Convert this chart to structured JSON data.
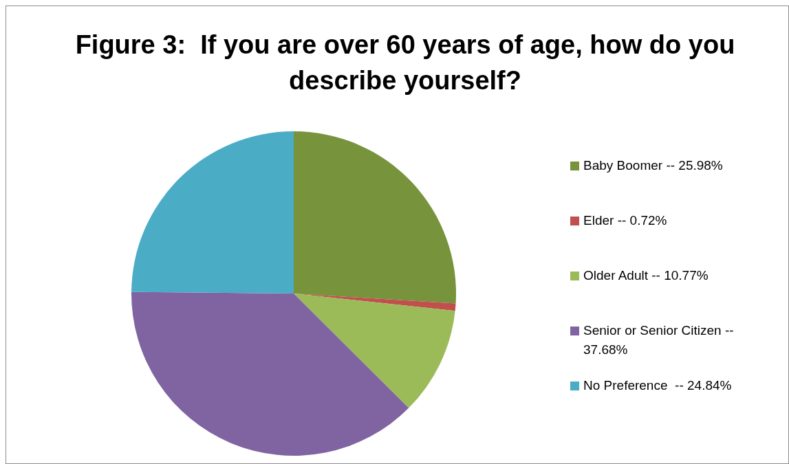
{
  "chart_data": {
    "type": "pie",
    "title": "Figure 3:  If you are over 60 years of age, how do you describe yourself?",
    "categories": [
      "Baby Boomer -- 25.98%",
      "Elder -- 0.72%",
      "Older Adult -- 10.77%",
      "Senior or Senior Citizen -- 37.68%",
      "No Preference  -- 24.84%"
    ],
    "values": [
      25.98,
      0.72,
      10.77,
      37.68,
      24.84
    ],
    "colors": [
      "#77933c",
      "#c0504d",
      "#9bbb59",
      "#8064a2",
      "#4bacc6"
    ],
    "legend": "right"
  }
}
